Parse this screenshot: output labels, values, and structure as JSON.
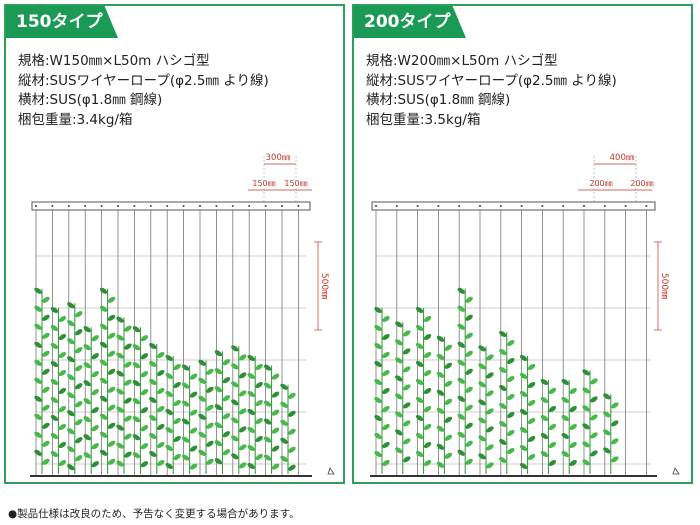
{
  "panels": [
    {
      "type_label": "150タイプ",
      "specs": [
        "規格:W150㎜×L50m ハシゴ型",
        "縦材:SUSワイヤーロープ(φ2.5㎜ より線)",
        "横材:SUS(φ1.8㎜ 鋼線)",
        "梱包重量:3.4kg/箱"
      ],
      "dims": {
        "pair": "300㎜",
        "single_a": "150㎜",
        "single_b": "150㎜",
        "height": "500㎜"
      },
      "plant_heights": [
        0.78,
        0.7,
        0.72,
        0.62,
        0.78,
        0.66,
        0.62,
        0.55,
        0.5,
        0.46,
        0.48,
        0.52,
        0.54,
        0.5,
        0.46,
        0.38
      ]
    },
    {
      "type_label": "200タイプ",
      "specs": [
        "規格:W200㎜×L50m ハシゴ型",
        "縦材:SUSワイヤーロープ(φ2.5㎜ より線)",
        "横材:SUS(φ1.8㎜ 鋼線)",
        "梱包重量:3.5kg/箱"
      ],
      "dims": {
        "pair": "400㎜",
        "single_a": "200㎜",
        "single_b": "200㎜",
        "height": "500㎜"
      },
      "plant_heights": [
        0.7,
        0.64,
        0.7,
        0.58,
        0.78,
        0.54,
        0.6,
        0.5,
        0.4,
        0.4,
        0.44,
        0.34
      ]
    }
  ],
  "footnote": "●製品仕様は改良のため、予告なく変更する場合があります。",
  "colors": {
    "accent": "#1b9a56",
    "border": "#2e9e5b",
    "leaf": "#49b84a",
    "leaf_dark": "#2f8f36",
    "frame": "#555555",
    "dim": "#c0392b"
  }
}
